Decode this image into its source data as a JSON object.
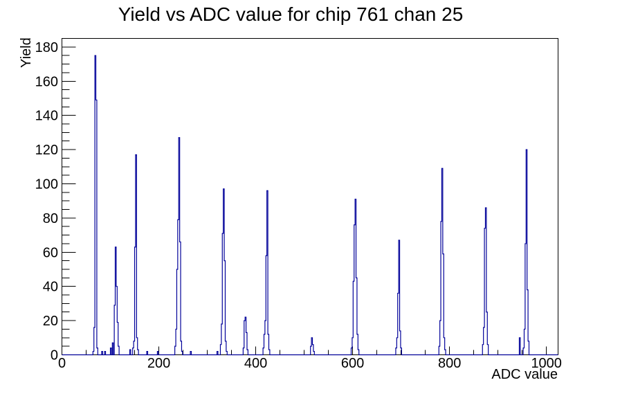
{
  "chart_data": {
    "type": "bar",
    "title": "Yield vs ADC value for chip 761 chan 25",
    "xlabel": "ADC value",
    "ylabel": "Yield",
    "xlim": [
      0,
      1024
    ],
    "ylim": [
      0,
      185
    ],
    "x_major_ticks": [
      0,
      200,
      400,
      600,
      800,
      1000
    ],
    "x_minor_step": 50,
    "y_major_ticks": [
      0,
      20,
      40,
      60,
      80,
      100,
      120,
      140,
      160,
      180
    ],
    "y_minor_step": 5,
    "grid": false,
    "legend": false,
    "background": "#ffffff",
    "axis_color": "#000000",
    "line_color": "#000099",
    "bin_width": 2,
    "peak_summary": [
      {
        "adc": 69,
        "yield": 175
      },
      {
        "adc": 111,
        "yield": 63
      },
      {
        "adc": 153,
        "yield": 117
      },
      {
        "adc": 242,
        "yield": 127
      },
      {
        "adc": 334,
        "yield": 97
      },
      {
        "adc": 379,
        "yield": 22
      },
      {
        "adc": 424,
        "yield": 96
      },
      {
        "adc": 516,
        "yield": 10
      },
      {
        "adc": 606,
        "yield": 91
      },
      {
        "adc": 696,
        "yield": 67
      },
      {
        "adc": 785,
        "yield": 109
      },
      {
        "adc": 875,
        "yield": 86
      },
      {
        "adc": 959,
        "yield": 120
      }
    ],
    "bars": [
      [
        65,
        2
      ],
      [
        67,
        16
      ],
      [
        69,
        175
      ],
      [
        71,
        149
      ],
      [
        73,
        4
      ],
      [
        83,
        2
      ],
      [
        89,
        2
      ],
      [
        101,
        4
      ],
      [
        105,
        7
      ],
      [
        109,
        29
      ],
      [
        111,
        63
      ],
      [
        113,
        40
      ],
      [
        115,
        19
      ],
      [
        117,
        5
      ],
      [
        141,
        3
      ],
      [
        147,
        4
      ],
      [
        149,
        8
      ],
      [
        151,
        63
      ],
      [
        153,
        117
      ],
      [
        155,
        10
      ],
      [
        157,
        3
      ],
      [
        176,
        2
      ],
      [
        198,
        2
      ],
      [
        234,
        5
      ],
      [
        236,
        15
      ],
      [
        238,
        50
      ],
      [
        240,
        79
      ],
      [
        242,
        127
      ],
      [
        244,
        66
      ],
      [
        246,
        8
      ],
      [
        248,
        2
      ],
      [
        266,
        2
      ],
      [
        321,
        2
      ],
      [
        328,
        6
      ],
      [
        330,
        18
      ],
      [
        332,
        71
      ],
      [
        334,
        97
      ],
      [
        336,
        55
      ],
      [
        338,
        8
      ],
      [
        340,
        2
      ],
      [
        375,
        4
      ],
      [
        377,
        20
      ],
      [
        379,
        22
      ],
      [
        381,
        13
      ],
      [
        383,
        3
      ],
      [
        416,
        4
      ],
      [
        418,
        12
      ],
      [
        420,
        20
      ],
      [
        422,
        58
      ],
      [
        424,
        96
      ],
      [
        426,
        12
      ],
      [
        428,
        3
      ],
      [
        514,
        5
      ],
      [
        516,
        10
      ],
      [
        518,
        6
      ],
      [
        520,
        2
      ],
      [
        598,
        4
      ],
      [
        600,
        10
      ],
      [
        602,
        43
      ],
      [
        604,
        76
      ],
      [
        606,
        91
      ],
      [
        608,
        45
      ],
      [
        610,
        12
      ],
      [
        612,
        3
      ],
      [
        690,
        4
      ],
      [
        692,
        10
      ],
      [
        694,
        36
      ],
      [
        696,
        67
      ],
      [
        698,
        14
      ],
      [
        700,
        4
      ],
      [
        779,
        5
      ],
      [
        781,
        20
      ],
      [
        783,
        78
      ],
      [
        785,
        109
      ],
      [
        787,
        59
      ],
      [
        789,
        10
      ],
      [
        791,
        3
      ],
      [
        869,
        6
      ],
      [
        871,
        16
      ],
      [
        873,
        74
      ],
      [
        875,
        86
      ],
      [
        877,
        25
      ],
      [
        879,
        6
      ],
      [
        945,
        10
      ],
      [
        953,
        4
      ],
      [
        955,
        15
      ],
      [
        957,
        65
      ],
      [
        959,
        120
      ],
      [
        961,
        38
      ],
      [
        963,
        8
      ]
    ]
  }
}
